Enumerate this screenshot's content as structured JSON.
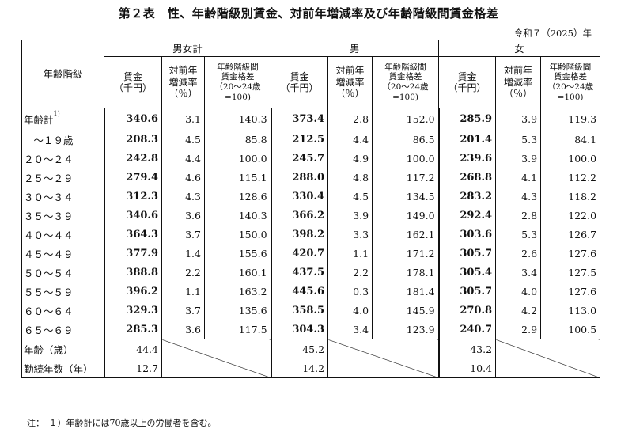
{
  "title": "第２表　性、年齢階級別賃金、対前年増減率及び年齢階級間賃金格差",
  "year_note": "令和７（2025）年",
  "header": {
    "age_group": "年齢階級",
    "groups": [
      "男女計",
      "男",
      "女"
    ],
    "wage_line1": "賃金",
    "wage_line2": "（千円）",
    "change_line1": "対前年",
    "change_line2": "増減率",
    "change_line3": "（％）",
    "diff_line1": "年齢階級間",
    "diff_line2": "賃金格差",
    "diff_line3": "（20～24歳",
    "diff_line4": "=100)"
  },
  "rows": [
    {
      "label": "年齢計",
      "sup": "1)",
      "total": [
        "340.6",
        "3.1",
        "140.3"
      ],
      "male": [
        "373.4",
        "2.8",
        "152.0"
      ],
      "female": [
        "285.9",
        "3.9",
        "119.3"
      ]
    },
    {
      "label": "　～１９歳",
      "total": [
        "208.3",
        "4.5",
        "85.8"
      ],
      "male": [
        "212.5",
        "4.4",
        "86.5"
      ],
      "female": [
        "201.4",
        "5.3",
        "84.1"
      ]
    },
    {
      "label": "２０～２４",
      "total": [
        "242.8",
        "4.4",
        "100.0"
      ],
      "male": [
        "245.7",
        "4.9",
        "100.0"
      ],
      "female": [
        "239.6",
        "3.9",
        "100.0"
      ]
    },
    {
      "label": "２５～２９",
      "total": [
        "279.4",
        "4.6",
        "115.1"
      ],
      "male": [
        "288.0",
        "4.8",
        "117.2"
      ],
      "female": [
        "268.8",
        "4.1",
        "112.2"
      ]
    },
    {
      "label": "３０～３４",
      "total": [
        "312.3",
        "4.3",
        "128.6"
      ],
      "male": [
        "330.4",
        "4.5",
        "134.5"
      ],
      "female": [
        "283.2",
        "4.3",
        "118.2"
      ]
    },
    {
      "label": "３５～３９",
      "total": [
        "340.6",
        "3.6",
        "140.3"
      ],
      "male": [
        "366.2",
        "3.9",
        "149.0"
      ],
      "female": [
        "292.4",
        "2.8",
        "122.0"
      ]
    },
    {
      "label": "４０～４４",
      "total": [
        "364.3",
        "3.7",
        "150.0"
      ],
      "male": [
        "398.2",
        "3.3",
        "162.1"
      ],
      "female": [
        "303.6",
        "5.3",
        "126.7"
      ]
    },
    {
      "label": "４５～４９",
      "total": [
        "377.9",
        "1.4",
        "155.6"
      ],
      "male": [
        "420.7",
        "1.1",
        "171.2"
      ],
      "female": [
        "305.7",
        "2.6",
        "127.6"
      ]
    },
    {
      "label": "５０～５４",
      "total": [
        "388.8",
        "2.2",
        "160.1"
      ],
      "male": [
        "437.5",
        "2.2",
        "178.1"
      ],
      "female": [
        "305.4",
        "3.4",
        "127.5"
      ]
    },
    {
      "label": "５５～５９",
      "total": [
        "396.2",
        "1.1",
        "163.2"
      ],
      "male": [
        "445.6",
        "0.3",
        "181.4"
      ],
      "female": [
        "305.7",
        "4.0",
        "127.6"
      ]
    },
    {
      "label": "６０～６４",
      "total": [
        "329.3",
        "3.7",
        "135.6"
      ],
      "male": [
        "358.5",
        "4.0",
        "145.9"
      ],
      "female": [
        "270.8",
        "4.2",
        "113.0"
      ]
    },
    {
      "label": "６５～６９",
      "total": [
        "285.3",
        "3.6",
        "117.5"
      ],
      "male": [
        "304.3",
        "3.4",
        "123.9"
      ],
      "female": [
        "240.7",
        "2.9",
        "100.5"
      ]
    }
  ],
  "summary": [
    {
      "label": "年齢（歳）",
      "total": "44.4",
      "male": "45.2",
      "female": "43.2"
    },
    {
      "label": "勤続年数（年）",
      "total": "12.7",
      "male": "14.2",
      "female": "10.4"
    }
  ],
  "footnote": "注：　１）年齢計には70歳以上の労働者を含む。"
}
